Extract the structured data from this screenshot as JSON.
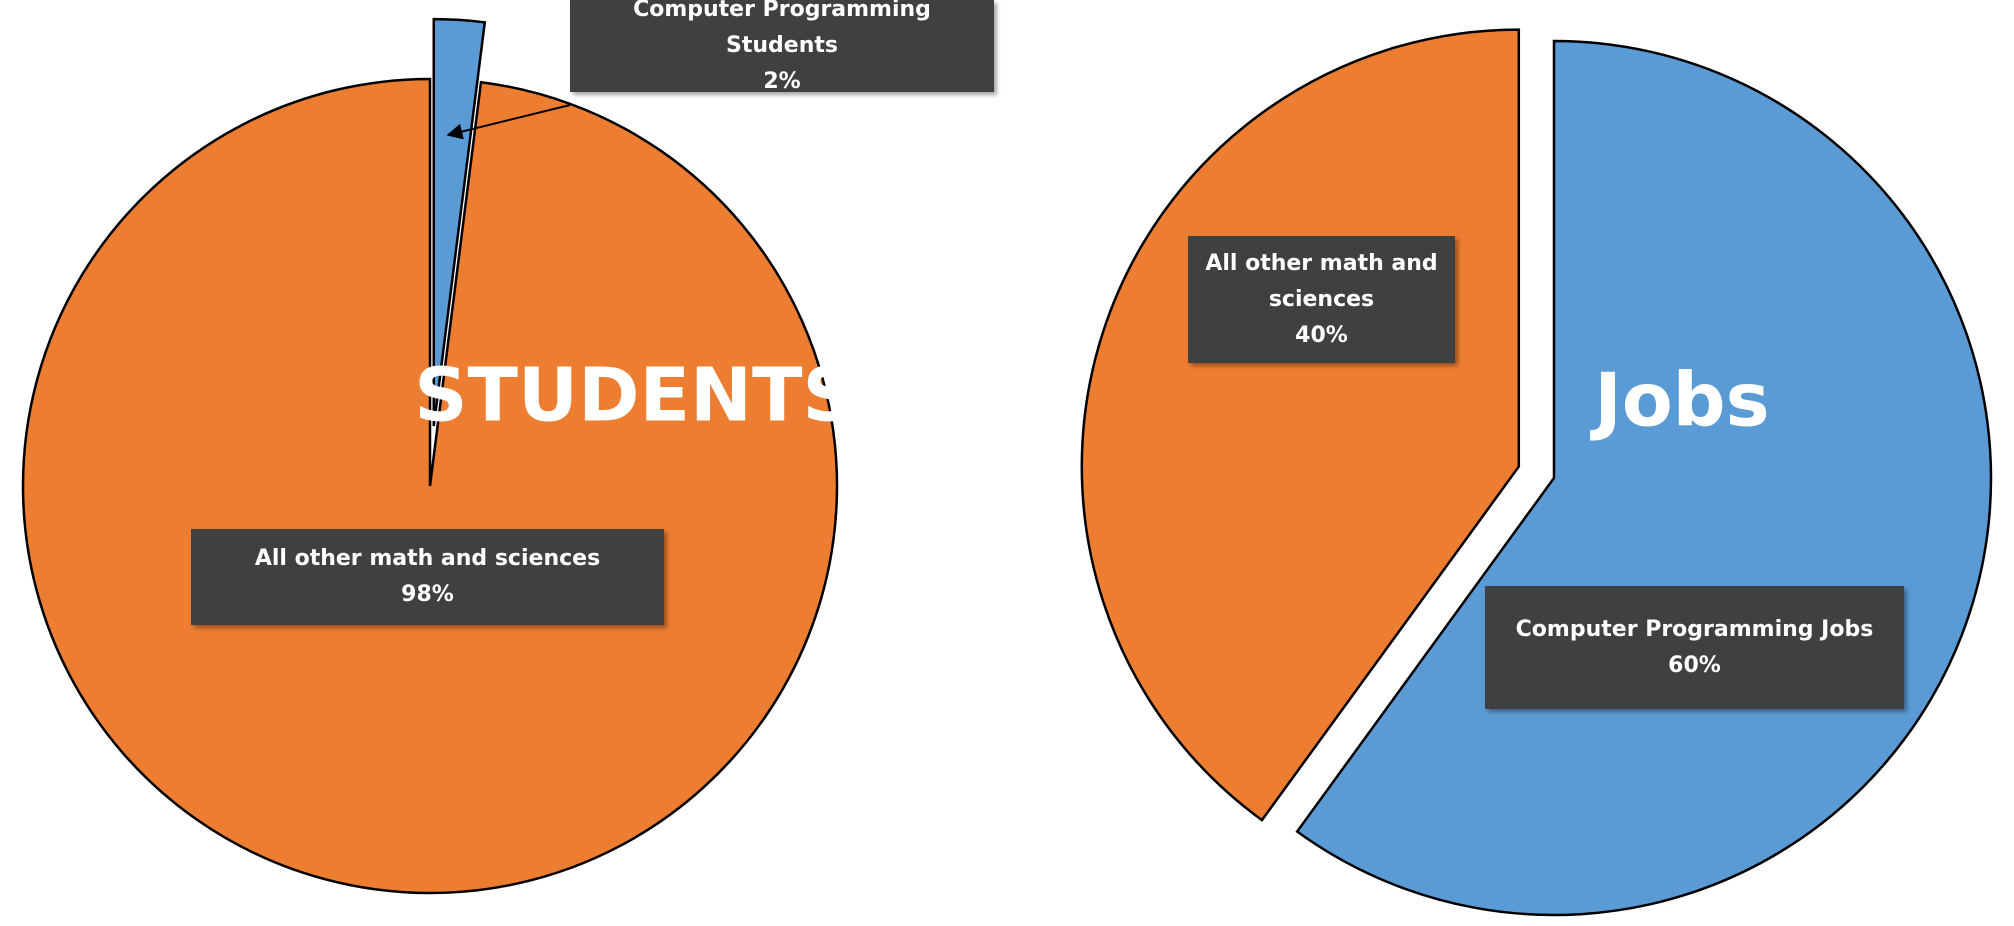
{
  "chart_data": [
    {
      "type": "pie",
      "title": "STUDENTS",
      "categories": [
        "Computer Programming Students",
        "All other math and sciences"
      ],
      "values": [
        2,
        98
      ],
      "value_labels": [
        "2%",
        "98%"
      ],
      "colors": [
        "#5b9bd5",
        "#ed7d31"
      ]
    },
    {
      "type": "pie",
      "title": "Jobs",
      "categories": [
        "Computer Programming Jobs",
        "All other math and sciences"
      ],
      "values": [
        60,
        40
      ],
      "value_labels": [
        "60%",
        "40%"
      ],
      "colors": [
        "#5b9bd5",
        "#ed7d31"
      ]
    }
  ]
}
